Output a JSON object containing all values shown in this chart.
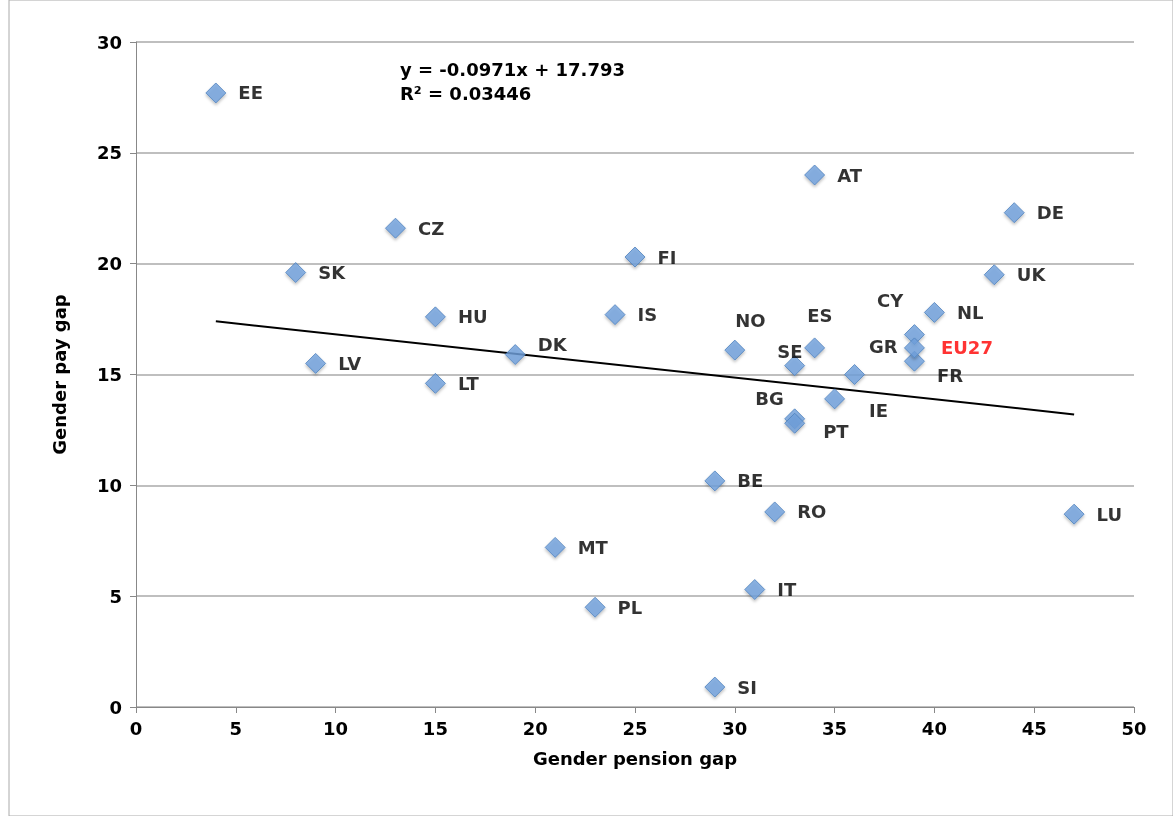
{
  "chart_data": {
    "type": "scatter",
    "xlabel": "Gender pension gap",
    "ylabel": "Gender pay gap",
    "annotations": [
      "y = -0.0971x + 17.793",
      "R² = 0.03446"
    ],
    "xlim": [
      0,
      50
    ],
    "xticks": [
      0,
      5,
      10,
      15,
      20,
      25,
      30,
      35,
      40,
      45,
      50
    ],
    "ylim": [
      0,
      30
    ],
    "yticks": [
      0,
      5,
      10,
      15,
      20,
      25,
      30
    ],
    "grid": "y",
    "marker": "diamond",
    "legend": false,
    "series": [
      {
        "color": "#6fa0dc",
        "x": [
          4,
          8,
          13,
          15,
          9,
          15,
          19,
          24,
          25,
          30,
          33,
          34,
          36,
          35,
          33,
          33,
          34,
          44,
          43,
          40,
          39,
          39,
          29,
          32,
          47,
          21,
          31,
          23,
          29
        ],
        "values": [
          27.7,
          19.6,
          21.6,
          17.6,
          15.5,
          14.6,
          15.9,
          17.7,
          20.3,
          16.1,
          15.4,
          16.2,
          15.0,
          13.9,
          13.0,
          12.8,
          24.0,
          22.3,
          19.5,
          17.8,
          16.8,
          15.6,
          10.2,
          8.8,
          8.7,
          7.2,
          5.3,
          4.5,
          0.9
        ],
        "value_labels": [
          "EE",
          "SK",
          "CZ",
          "HU",
          "LV",
          "LT",
          "DK",
          "IS",
          "FI",
          "NO",
          "SE",
          "ES",
          "GR",
          "IE",
          "BG",
          "PT",
          "AT",
          "DE",
          "UK",
          "NL",
          "CY",
          "FR",
          "BE",
          "RO",
          "LU",
          "MT",
          "IT",
          "PL",
          "SI"
        ]
      },
      {
        "name": "EU27",
        "color": "#6fa0dc",
        "x": [
          39
        ],
        "values": [
          16.2
        ]
      },
      {
        "type": "line",
        "color": "#000000",
        "marker": "none",
        "x": [
          4,
          47
        ],
        "values": [
          17.4,
          13.2
        ]
      }
    ]
  }
}
